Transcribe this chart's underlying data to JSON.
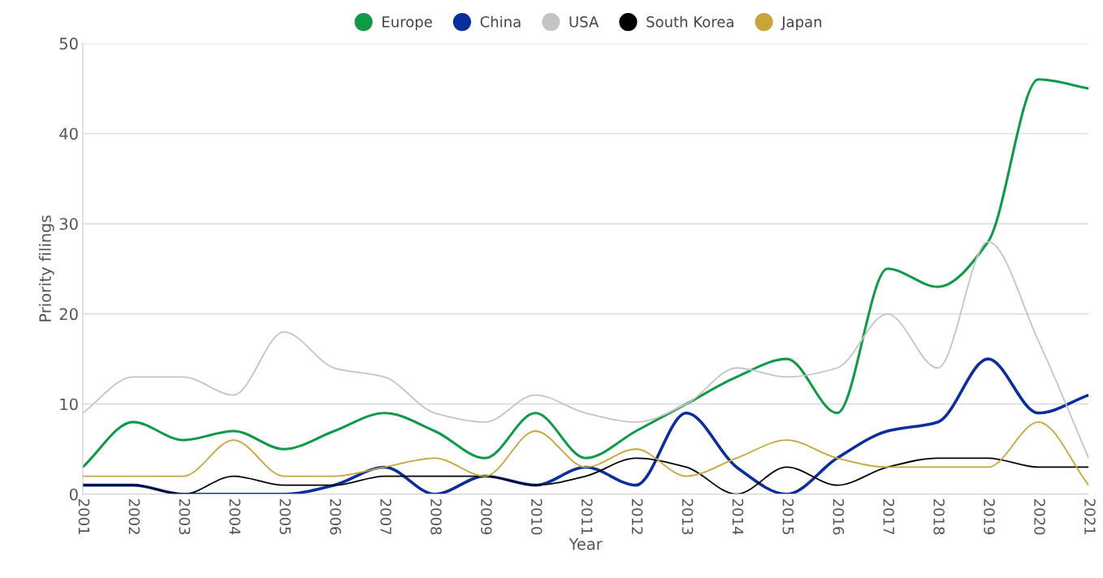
{
  "chart_data": {
    "type": "line",
    "xlabel": "Year",
    "ylabel": "Priority filings",
    "categories": [
      "2001",
      "2002",
      "2003",
      "2004",
      "2005",
      "2006",
      "2007",
      "2008",
      "2009",
      "2010",
      "2011",
      "2012",
      "2013",
      "2014",
      "2015",
      "2016",
      "2017",
      "2018",
      "2019",
      "2020",
      "2021"
    ],
    "series": [
      {
        "name": "Europe",
        "color": "#109a48",
        "values": [
          3,
          8,
          6,
          7,
          5,
          7,
          9,
          7,
          4,
          9,
          4,
          7,
          10,
          13,
          15,
          9,
          25,
          23,
          28,
          46,
          45
        ]
      },
      {
        "name": "China",
        "color": "#0a2f9c",
        "values": [
          1,
          1,
          0,
          0,
          0,
          1,
          3,
          0,
          2,
          1,
          3,
          1,
          9,
          3,
          0,
          4,
          7,
          8,
          15,
          9,
          11
        ]
      },
      {
        "name": "USA",
        "color": "#c4c4c4",
        "values": [
          9,
          13,
          13,
          11,
          18,
          14,
          13,
          9,
          8,
          11,
          9,
          8,
          10,
          14,
          13,
          14,
          20,
          14,
          28,
          17,
          4
        ]
      },
      {
        "name": "South Korea",
        "color": "#000000",
        "values": [
          1,
          1,
          0,
          2,
          1,
          1,
          2,
          2,
          2,
          1,
          2,
          4,
          3,
          0,
          3,
          1,
          3,
          4,
          4,
          3,
          3
        ]
      },
      {
        "name": "Japan",
        "color": "#c9a43c",
        "values": [
          2,
          2,
          2,
          6,
          2,
          2,
          3,
          4,
          2,
          7,
          3,
          5,
          2,
          4,
          6,
          4,
          3,
          3,
          3,
          8,
          1
        ]
      }
    ],
    "ylim": [
      0,
      50
    ],
    "yticks": [
      0,
      10,
      20,
      30,
      40,
      50
    ],
    "grid": "y",
    "legend": "top",
    "marker": "none",
    "line_style": "solid"
  }
}
